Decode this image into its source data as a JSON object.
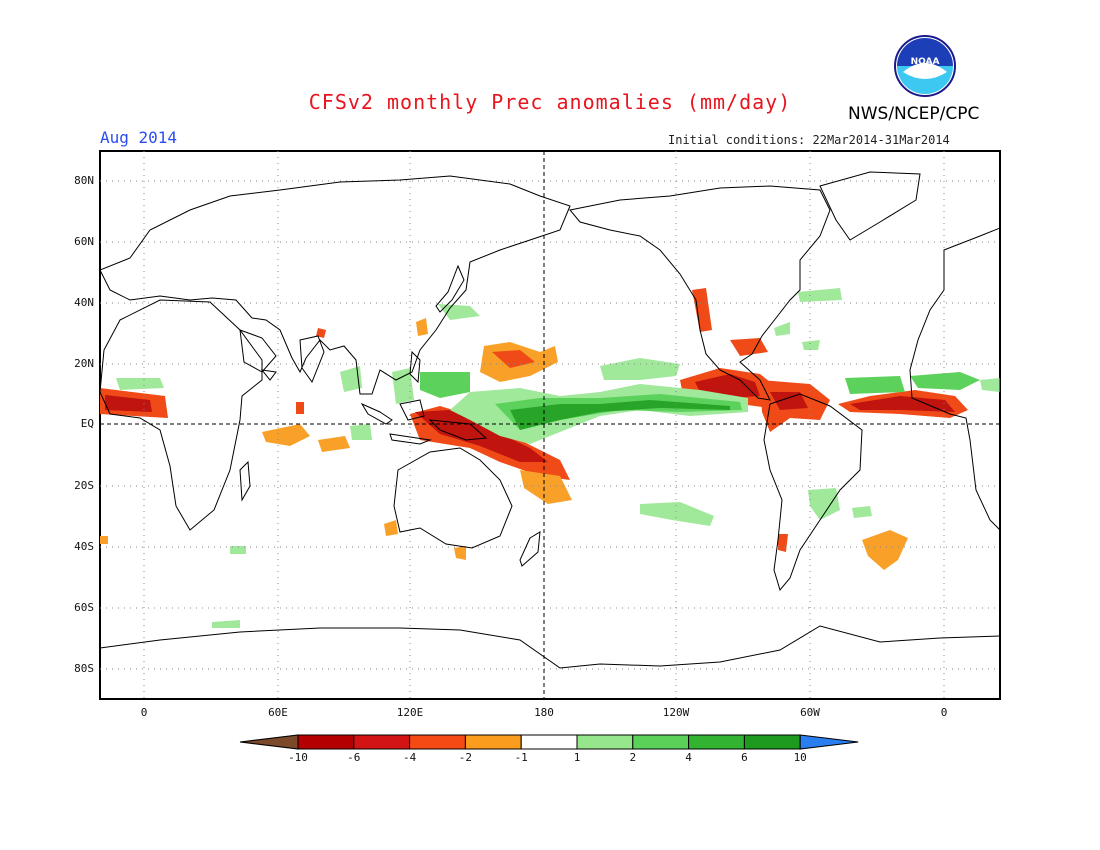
{
  "header": {
    "title": "CFSv2 monthly Prec anomalies (mm/day)",
    "agency": "NWS/NCEP/CPC",
    "logo_text": "NOAA",
    "valid_month": "Aug 2014",
    "initial_conditions": "Initial conditions: 22Mar2014-31Mar2014"
  },
  "axes": {
    "lat_labels": [
      "80N",
      "60N",
      "40N",
      "20N",
      "EQ",
      "20S",
      "40S",
      "60S",
      "80S"
    ],
    "lon_labels": [
      "0",
      "60E",
      "120E",
      "180",
      "120W",
      "60W",
      "0"
    ]
  },
  "colorbar": {
    "labels": [
      "-10",
      "-6",
      "-4",
      "-2",
      "-1",
      "1",
      "2",
      "4",
      "6",
      "10"
    ],
    "colors": [
      "#7b4a2a",
      "#b40000",
      "#d21414",
      "#f54a14",
      "#fa9c1e",
      "#ffffff",
      "#96e68c",
      "#5ad25a",
      "#32b432",
      "#1e9a1e",
      "#2b7ef0"
    ]
  },
  "colors": {
    "dry_strong": "#c0140e",
    "dry_mid": "#f04a18",
    "dry_light": "#f8a028",
    "wet_light": "#a0e89a",
    "wet_mid": "#5cd25c",
    "wet_strong": "#28a428",
    "coastline": "#000000"
  }
}
